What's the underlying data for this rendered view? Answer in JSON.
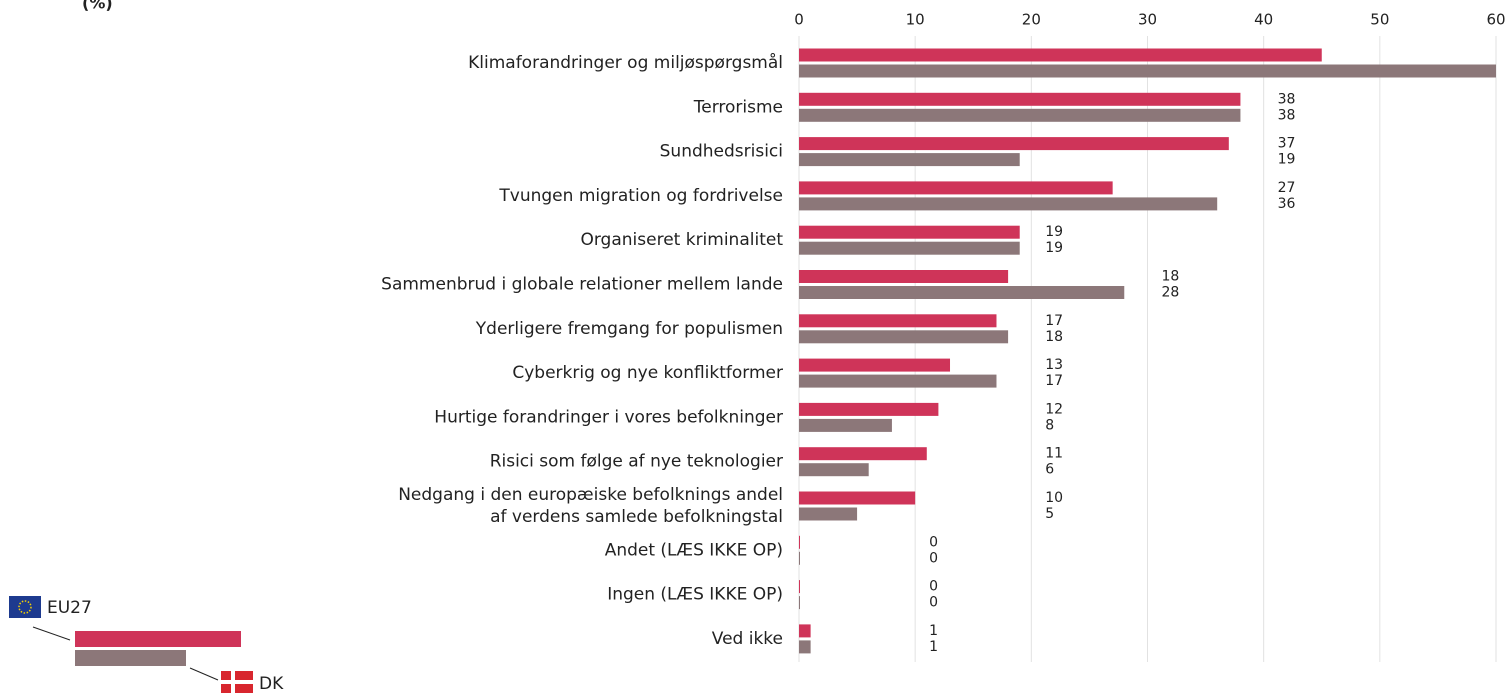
{
  "chart_data": {
    "type": "bar",
    "orientation": "horizontal",
    "title": "(%)",
    "categories": [
      "Klimaforandringer og miljøspørgsmål",
      "Terrorisme",
      "Sundhedsrisici",
      "Tvungen migration og fordrivelse",
      "Organiseret kriminalitet",
      "Sammenbrud i globale relationer mellem lande",
      "Yderligere fremgang for populismen",
      "Cyberkrig og nye konfliktformer",
      "Hurtige forandringer i vores befolkninger",
      "Risici som følge af nye teknologier",
      "Nedgang i den europæiske befolknings andel\naf verdens samlede befolkningstal",
      "Andet (LÆS IKKE OP)",
      "Ingen (LÆS IKKE OP)",
      "Ved ikke"
    ],
    "series": [
      {
        "name": "EU27",
        "color": "#cf3459",
        "values": [
          45,
          38,
          37,
          27,
          19,
          18,
          17,
          13,
          12,
          11,
          10,
          0,
          0,
          1
        ],
        "value_labels": [
          null,
          "38",
          "37",
          "27",
          "19",
          "18",
          "17",
          "13",
          "12",
          "11",
          "10",
          "0",
          "0",
          "1"
        ]
      },
      {
        "name": "DK",
        "color": "#8c7779",
        "values": [
          60,
          38,
          19,
          36,
          19,
          28,
          18,
          17,
          8,
          6,
          5,
          0,
          0,
          1
        ],
        "value_labels": [
          null,
          "38",
          "19",
          "36",
          "19",
          "28",
          "18",
          "17",
          "8",
          "6",
          "5",
          "0",
          "0",
          "1"
        ]
      }
    ],
    "xlim": [
      0,
      60
    ],
    "xticks": [
      0,
      10,
      20,
      30,
      40,
      50,
      60
    ],
    "grid": true
  }
}
